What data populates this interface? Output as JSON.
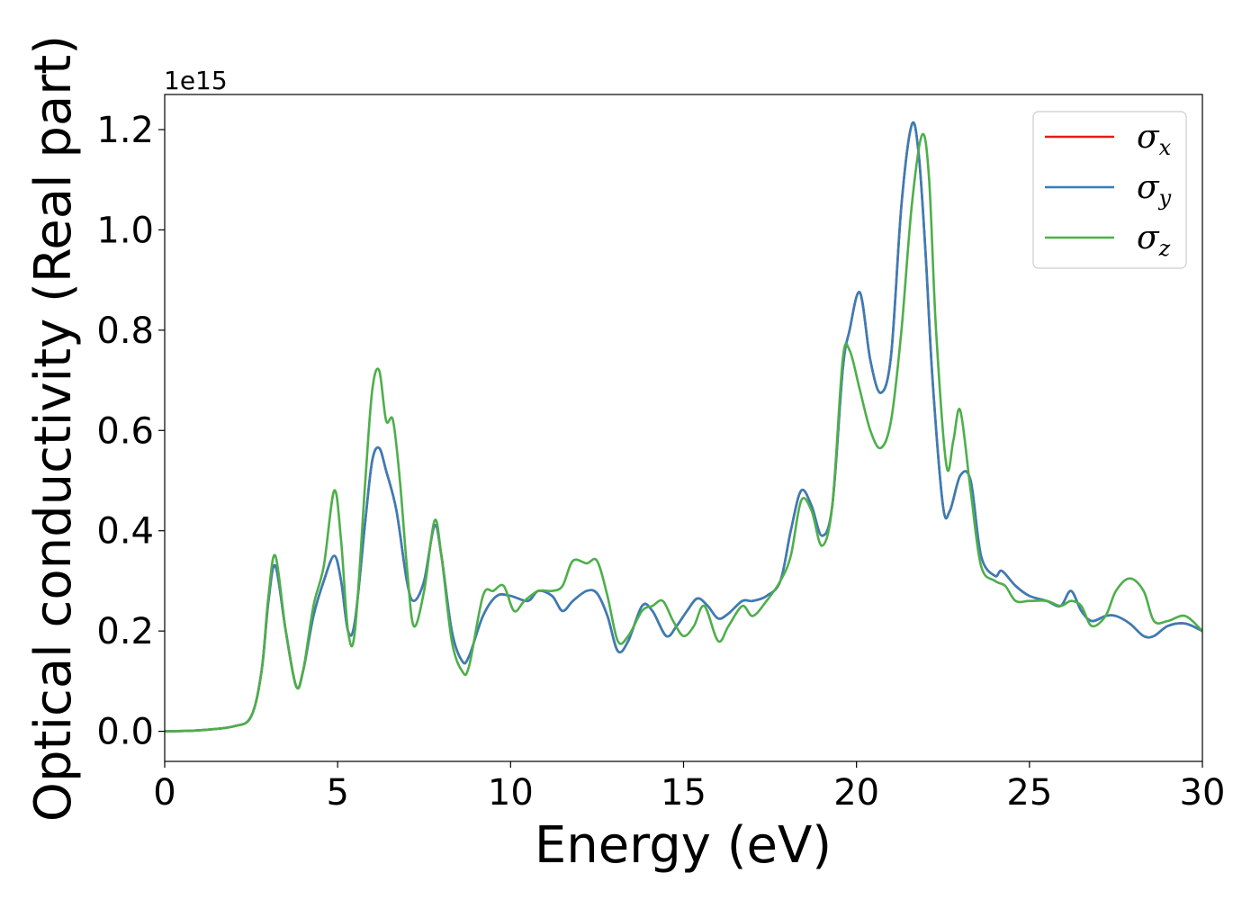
{
  "chart_data": {
    "type": "line",
    "xlabel": "Energy (eV)",
    "ylabel": "Optical conductivity (Real part)",
    "y_offset_text": "1e15",
    "xlim": [
      0,
      30
    ],
    "ylim": [
      -0.06,
      1.27
    ],
    "y_scale_multiplier": 1000000000000000.0,
    "xticks": [
      0,
      5,
      10,
      15,
      20,
      25,
      30
    ],
    "xtick_labels": [
      "0",
      "5",
      "10",
      "15",
      "20",
      "25",
      "30"
    ],
    "yticks": [
      0.0,
      0.2,
      0.4,
      0.6,
      0.8,
      1.0,
      1.2
    ],
    "ytick_labels": [
      "0.0",
      "0.2",
      "0.4",
      "0.6",
      "0.8",
      "1.0",
      "1.2"
    ],
    "grid": false,
    "legend_position": "top-right",
    "series": [
      {
        "name": "σx",
        "label_base": "σ",
        "label_sub": "x",
        "color": "#e41a1c",
        "x": [
          0,
          1,
          2,
          2.5,
          2.8,
          3.0,
          3.2,
          3.5,
          3.8,
          4.0,
          4.3,
          4.6,
          4.9,
          5.1,
          5.3,
          5.5,
          5.8,
          6.0,
          6.2,
          6.4,
          6.7,
          7.0,
          7.2,
          7.5,
          7.8,
          8.0,
          8.3,
          8.6,
          8.8,
          9.2,
          9.6,
          10.0,
          10.5,
          10.8,
          11.2,
          11.5,
          11.8,
          12.2,
          12.5,
          12.8,
          13.1,
          13.4,
          13.8,
          14.1,
          14.5,
          14.8,
          15.1,
          15.4,
          15.7,
          16.0,
          16.3,
          16.7,
          17.0,
          17.4,
          17.8,
          18.1,
          18.4,
          18.7,
          19.0,
          19.3,
          19.6,
          19.8,
          20.1,
          20.4,
          20.7,
          21.0,
          21.3,
          21.6,
          21.8,
          22.0,
          22.2,
          22.5,
          22.7,
          23.0,
          23.3,
          23.6,
          24.0,
          24.2,
          24.6,
          25.0,
          25.5,
          25.9,
          26.2,
          26.5,
          26.8,
          27.2,
          27.5,
          27.9,
          28.3,
          28.6,
          29.0,
          29.5,
          30.0
        ],
        "y": [
          0.0,
          0.002,
          0.01,
          0.03,
          0.12,
          0.26,
          0.33,
          0.2,
          0.09,
          0.12,
          0.23,
          0.3,
          0.35,
          0.3,
          0.2,
          0.22,
          0.42,
          0.54,
          0.565,
          0.52,
          0.44,
          0.3,
          0.26,
          0.3,
          0.41,
          0.35,
          0.2,
          0.14,
          0.15,
          0.23,
          0.27,
          0.27,
          0.26,
          0.28,
          0.27,
          0.24,
          0.26,
          0.28,
          0.275,
          0.23,
          0.16,
          0.18,
          0.25,
          0.24,
          0.19,
          0.21,
          0.24,
          0.265,
          0.25,
          0.225,
          0.235,
          0.26,
          0.26,
          0.27,
          0.3,
          0.4,
          0.48,
          0.45,
          0.39,
          0.45,
          0.72,
          0.8,
          0.875,
          0.74,
          0.675,
          0.75,
          1.05,
          1.21,
          1.15,
          0.95,
          0.7,
          0.45,
          0.44,
          0.51,
          0.5,
          0.35,
          0.31,
          0.32,
          0.29,
          0.27,
          0.26,
          0.25,
          0.28,
          0.24,
          0.22,
          0.23,
          0.23,
          0.215,
          0.19,
          0.19,
          0.21,
          0.215,
          0.2
        ]
      },
      {
        "name": "σy",
        "label_base": "σ",
        "label_sub": "y",
        "color": "#377eb8",
        "x": [
          0,
          1,
          2,
          2.5,
          2.8,
          3.0,
          3.2,
          3.5,
          3.8,
          4.0,
          4.3,
          4.6,
          4.9,
          5.1,
          5.3,
          5.5,
          5.8,
          6.0,
          6.2,
          6.4,
          6.7,
          7.0,
          7.2,
          7.5,
          7.8,
          8.0,
          8.3,
          8.6,
          8.8,
          9.2,
          9.6,
          10.0,
          10.5,
          10.8,
          11.2,
          11.5,
          11.8,
          12.2,
          12.5,
          12.8,
          13.1,
          13.4,
          13.8,
          14.1,
          14.5,
          14.8,
          15.1,
          15.4,
          15.7,
          16.0,
          16.3,
          16.7,
          17.0,
          17.4,
          17.8,
          18.1,
          18.4,
          18.7,
          19.0,
          19.3,
          19.6,
          19.8,
          20.1,
          20.4,
          20.7,
          21.0,
          21.3,
          21.6,
          21.8,
          22.0,
          22.2,
          22.5,
          22.7,
          23.0,
          23.3,
          23.6,
          24.0,
          24.2,
          24.6,
          25.0,
          25.5,
          25.9,
          26.2,
          26.5,
          26.8,
          27.2,
          27.5,
          27.9,
          28.3,
          28.6,
          29.0,
          29.5,
          30.0
        ],
        "y": [
          0.0,
          0.002,
          0.01,
          0.03,
          0.12,
          0.26,
          0.33,
          0.2,
          0.09,
          0.12,
          0.23,
          0.3,
          0.35,
          0.3,
          0.2,
          0.22,
          0.42,
          0.54,
          0.565,
          0.52,
          0.44,
          0.3,
          0.26,
          0.3,
          0.41,
          0.35,
          0.2,
          0.14,
          0.15,
          0.23,
          0.27,
          0.27,
          0.26,
          0.28,
          0.27,
          0.24,
          0.26,
          0.28,
          0.275,
          0.23,
          0.16,
          0.18,
          0.25,
          0.24,
          0.19,
          0.21,
          0.24,
          0.265,
          0.25,
          0.225,
          0.235,
          0.26,
          0.26,
          0.27,
          0.3,
          0.4,
          0.48,
          0.45,
          0.39,
          0.45,
          0.72,
          0.8,
          0.875,
          0.74,
          0.675,
          0.75,
          1.05,
          1.21,
          1.15,
          0.95,
          0.7,
          0.45,
          0.44,
          0.51,
          0.5,
          0.35,
          0.31,
          0.32,
          0.29,
          0.27,
          0.26,
          0.25,
          0.28,
          0.24,
          0.22,
          0.23,
          0.23,
          0.215,
          0.19,
          0.19,
          0.21,
          0.215,
          0.2
        ]
      },
      {
        "name": "σz",
        "label_base": "σ",
        "label_sub": "z",
        "color": "#4daf4a",
        "x": [
          0,
          1,
          2,
          2.5,
          2.8,
          3.0,
          3.2,
          3.5,
          3.8,
          4.0,
          4.3,
          4.6,
          4.9,
          5.1,
          5.3,
          5.5,
          5.8,
          6.0,
          6.2,
          6.4,
          6.6,
          6.8,
          7.0,
          7.2,
          7.5,
          7.8,
          8.0,
          8.3,
          8.6,
          8.8,
          9.2,
          9.5,
          9.8,
          10.1,
          10.4,
          10.8,
          11.2,
          11.5,
          11.8,
          12.2,
          12.5,
          12.8,
          13.1,
          13.4,
          13.8,
          14.1,
          14.4,
          14.7,
          15.0,
          15.3,
          15.6,
          16.0,
          16.3,
          16.7,
          17.0,
          17.4,
          17.8,
          18.1,
          18.4,
          18.7,
          19.0,
          19.3,
          19.6,
          19.8,
          20.1,
          20.4,
          20.7,
          21.0,
          21.3,
          21.6,
          21.9,
          22.1,
          22.3,
          22.6,
          22.8,
          23.0,
          23.3,
          23.6,
          24.0,
          24.3,
          24.6,
          25.0,
          25.5,
          25.9,
          26.2,
          26.5,
          26.8,
          27.2,
          27.5,
          27.9,
          28.3,
          28.6,
          29.0,
          29.5,
          30.0
        ],
        "y": [
          0.0,
          0.002,
          0.01,
          0.03,
          0.12,
          0.27,
          0.35,
          0.2,
          0.09,
          0.12,
          0.25,
          0.33,
          0.48,
          0.38,
          0.2,
          0.2,
          0.5,
          0.68,
          0.72,
          0.62,
          0.62,
          0.5,
          0.33,
          0.21,
          0.28,
          0.42,
          0.35,
          0.18,
          0.12,
          0.13,
          0.27,
          0.28,
          0.29,
          0.24,
          0.26,
          0.28,
          0.28,
          0.29,
          0.34,
          0.335,
          0.34,
          0.27,
          0.18,
          0.19,
          0.24,
          0.25,
          0.26,
          0.22,
          0.19,
          0.21,
          0.25,
          0.18,
          0.21,
          0.25,
          0.23,
          0.26,
          0.3,
          0.35,
          0.46,
          0.44,
          0.37,
          0.45,
          0.74,
          0.76,
          0.68,
          0.6,
          0.565,
          0.62,
          0.8,
          1.05,
          1.19,
          1.1,
          0.8,
          0.53,
          0.58,
          0.64,
          0.48,
          0.33,
          0.3,
          0.29,
          0.26,
          0.26,
          0.26,
          0.25,
          0.26,
          0.25,
          0.21,
          0.23,
          0.28,
          0.305,
          0.28,
          0.22,
          0.22,
          0.23,
          0.2
        ]
      }
    ]
  }
}
